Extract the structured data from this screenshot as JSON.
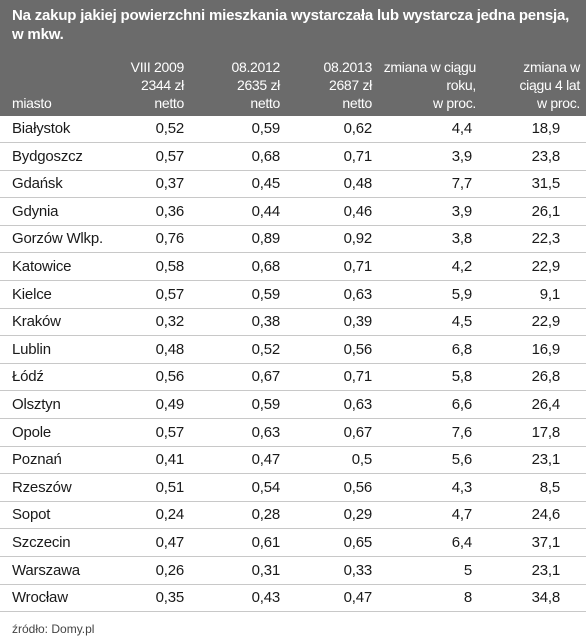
{
  "title": "Na zakup jakiej powierzchni mieszkania wystarczała lub wystarcza jedna pensja, w mkw.",
  "columns": [
    {
      "lines": [
        "miasto"
      ]
    },
    {
      "lines": [
        "VIII 2009",
        "2344 zł",
        "netto"
      ]
    },
    {
      "lines": [
        "08.2012",
        "2635 zł",
        "netto"
      ]
    },
    {
      "lines": [
        "08.2013",
        "2687 zł",
        "netto"
      ]
    },
    {
      "lines": [
        "zmiana w ciągu",
        "roku,",
        "w proc."
      ]
    },
    {
      "lines": [
        "zmiana w",
        "ciągu 4 lat",
        "w proc."
      ]
    }
  ],
  "source": "źródło: Domy.pl",
  "chart_data": {
    "type": "table",
    "title": "Na zakup jakiej powierzchni mieszkania wystarczała lub wystarcza jedna pensja, w mkw.",
    "rows": [
      [
        "Białystok",
        "0,52",
        "0,59",
        "0,62",
        "4,4",
        "18,9"
      ],
      [
        "Bydgoszcz",
        "0,57",
        "0,68",
        "0,71",
        "3,9",
        "23,8"
      ],
      [
        "Gdańsk",
        "0,37",
        "0,45",
        "0,48",
        "7,7",
        "31,5"
      ],
      [
        "Gdynia",
        "0,36",
        "0,44",
        "0,46",
        "3,9",
        "26,1"
      ],
      [
        "Gorzów Wlkp.",
        "0,76",
        "0,89",
        "0,92",
        "3,8",
        "22,3"
      ],
      [
        "Katowice",
        "0,58",
        "0,68",
        "0,71",
        "4,2",
        "22,9"
      ],
      [
        "Kielce",
        "0,57",
        "0,59",
        "0,63",
        "5,9",
        "9,1"
      ],
      [
        "Kraków",
        "0,32",
        "0,38",
        "0,39",
        "4,5",
        "22,9"
      ],
      [
        "Lublin",
        "0,48",
        "0,52",
        "0,56",
        "6,8",
        "16,9"
      ],
      [
        "Łódź",
        "0,56",
        "0,67",
        "0,71",
        "5,8",
        "26,8"
      ],
      [
        "Olsztyn",
        "0,49",
        "0,59",
        "0,63",
        "6,6",
        "26,4"
      ],
      [
        "Opole",
        "0,57",
        "0,63",
        "0,67",
        "7,6",
        "17,8"
      ],
      [
        "Poznań",
        "0,41",
        "0,47",
        "0,5",
        "5,6",
        "23,1"
      ],
      [
        "Rzeszów",
        "0,51",
        "0,54",
        "0,56",
        "4,3",
        "8,5"
      ],
      [
        "Sopot",
        "0,24",
        "0,28",
        "0,29",
        "4,7",
        "24,6"
      ],
      [
        "Szczecin",
        "0,47",
        "0,61",
        "0,65",
        "6,4",
        "37,1"
      ],
      [
        "Warszawa",
        "0,26",
        "0,31",
        "0,33",
        "5",
        "23,1"
      ],
      [
        "Wrocław",
        "0,35",
        "0,43",
        "0,47",
        "8",
        "34,8"
      ]
    ]
  }
}
